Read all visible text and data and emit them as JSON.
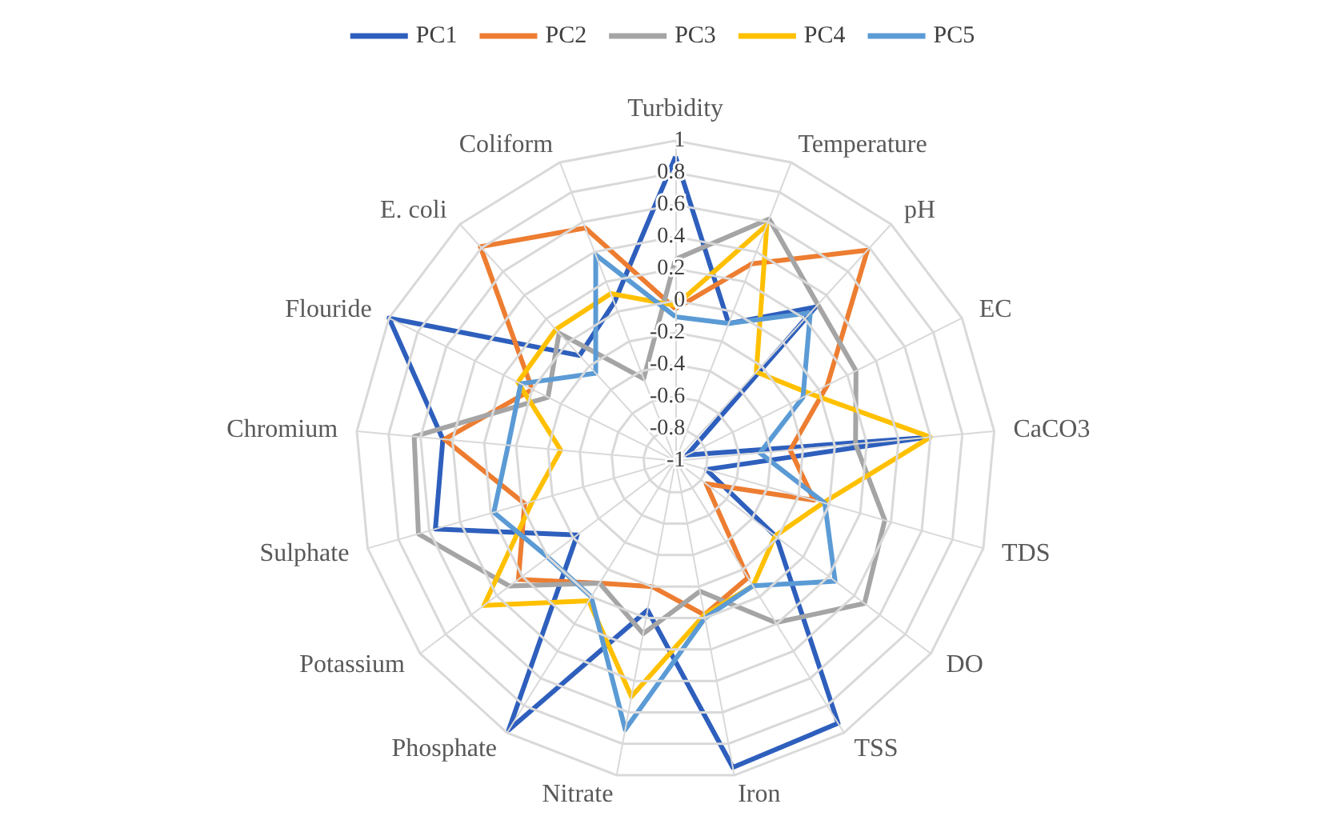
{
  "chart_data": {
    "type": "radar",
    "categories": [
      "Turbidity",
      "Temperature",
      "pH",
      "EC",
      "CaCO3",
      "TDS",
      "DO",
      "TSS",
      "Iron",
      "Nitrate",
      "Phosphate",
      "Potassium",
      "Sulphate",
      "Chromium",
      "Flouride",
      "E. coli",
      "Coliform"
    ],
    "series": [
      {
        "name": "PC1",
        "color": "#2e5fbd",
        "values": [
          0.9,
          -0.08,
          0.3,
          -0.92,
          0.55,
          -0.8,
          -0.21,
          0.93,
          0.95,
          -0.05,
          0.98,
          -0.23,
          0.56,
          0.46,
          1.0,
          -0.11,
          0.06
        ]
      },
      {
        "name": "PC2",
        "color": "#ed7d31",
        "values": [
          -0.05,
          0.32,
          0.78,
          0.06,
          -0.28,
          -0.1,
          -0.76,
          -0.14,
          -0.02,
          -0.2,
          -0.1,
          0.23,
          -0.02,
          0.45,
          0.0,
          0.81,
          0.56
        ]
      },
      {
        "name": "PC3",
        "color": "#a5a5a5",
        "values": [
          0.26,
          0.62,
          0.32,
          0.26,
          0.13,
          0.36,
          0.48,
          0.19,
          -0.17,
          0.1,
          -0.1,
          0.3,
          0.67,
          0.64,
          -0.11,
          0.08,
          -0.45
        ]
      },
      {
        "name": "PC4",
        "color": "#ffc000",
        "values": [
          -0.03,
          0.58,
          -0.25,
          -0.06,
          0.6,
          -0.04,
          -0.22,
          -0.08,
          -0.02,
          0.5,
          0.03,
          0.5,
          -0.07,
          -0.28,
          0.1,
          0.11,
          0.12
        ]
      },
      {
        "name": "PC5",
        "color": "#5b9bd5",
        "values": [
          -0.1,
          -0.08,
          0.25,
          -0.11,
          -0.47,
          -0.03,
          0.25,
          -0.08,
          0.0,
          0.71,
          0.0,
          0.0,
          0.18,
          0.05,
          0.08,
          -0.26,
          0.38
        ]
      }
    ],
    "ylim": [
      -1,
      1
    ],
    "yticks": [
      -1,
      -0.8,
      -0.6,
      -0.4,
      -0.2,
      0,
      0.2,
      0.4,
      0.6,
      0.8,
      1
    ],
    "grid": true,
    "legend": "top",
    "marker": "none",
    "line_style": "solid"
  }
}
